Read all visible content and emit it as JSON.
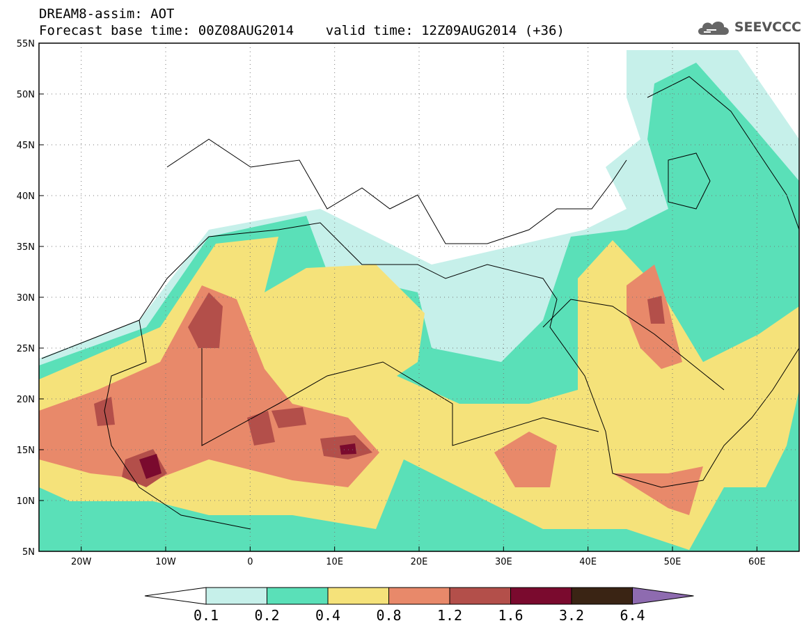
{
  "header": {
    "line1": "DREAM8-assim: AOT",
    "line2": "Forecast base time: 00Z08AUG2014    valid time: 12Z09AUG2014 (+36)"
  },
  "logo": {
    "text": "SEEVCCC",
    "icon": "cloud-icon"
  },
  "map": {
    "lon_range": [
      -25,
      65
    ],
    "lat_range": [
      5,
      55
    ],
    "lat_ticks": [
      "55N",
      "50N",
      "45N",
      "40N",
      "35N",
      "30N",
      "25N",
      "20N",
      "15N",
      "10N",
      "5N"
    ],
    "lon_ticks": [
      "20W",
      "10W",
      "0",
      "10E",
      "20E",
      "30E",
      "40E",
      "50E",
      "60E"
    ],
    "grid": "dotted"
  },
  "colorbar": {
    "labels": [
      "0.1",
      "0.2",
      "0.4",
      "0.8",
      "1.2",
      "1.6",
      "3.2",
      "6.4"
    ],
    "colors": [
      "#c6f0ea",
      "#5ae0b8",
      "#f5e27a",
      "#e8896a",
      "#b34f4a",
      "#7a0a2e",
      "#3a2414",
      "#8e6bb0"
    ]
  }
}
